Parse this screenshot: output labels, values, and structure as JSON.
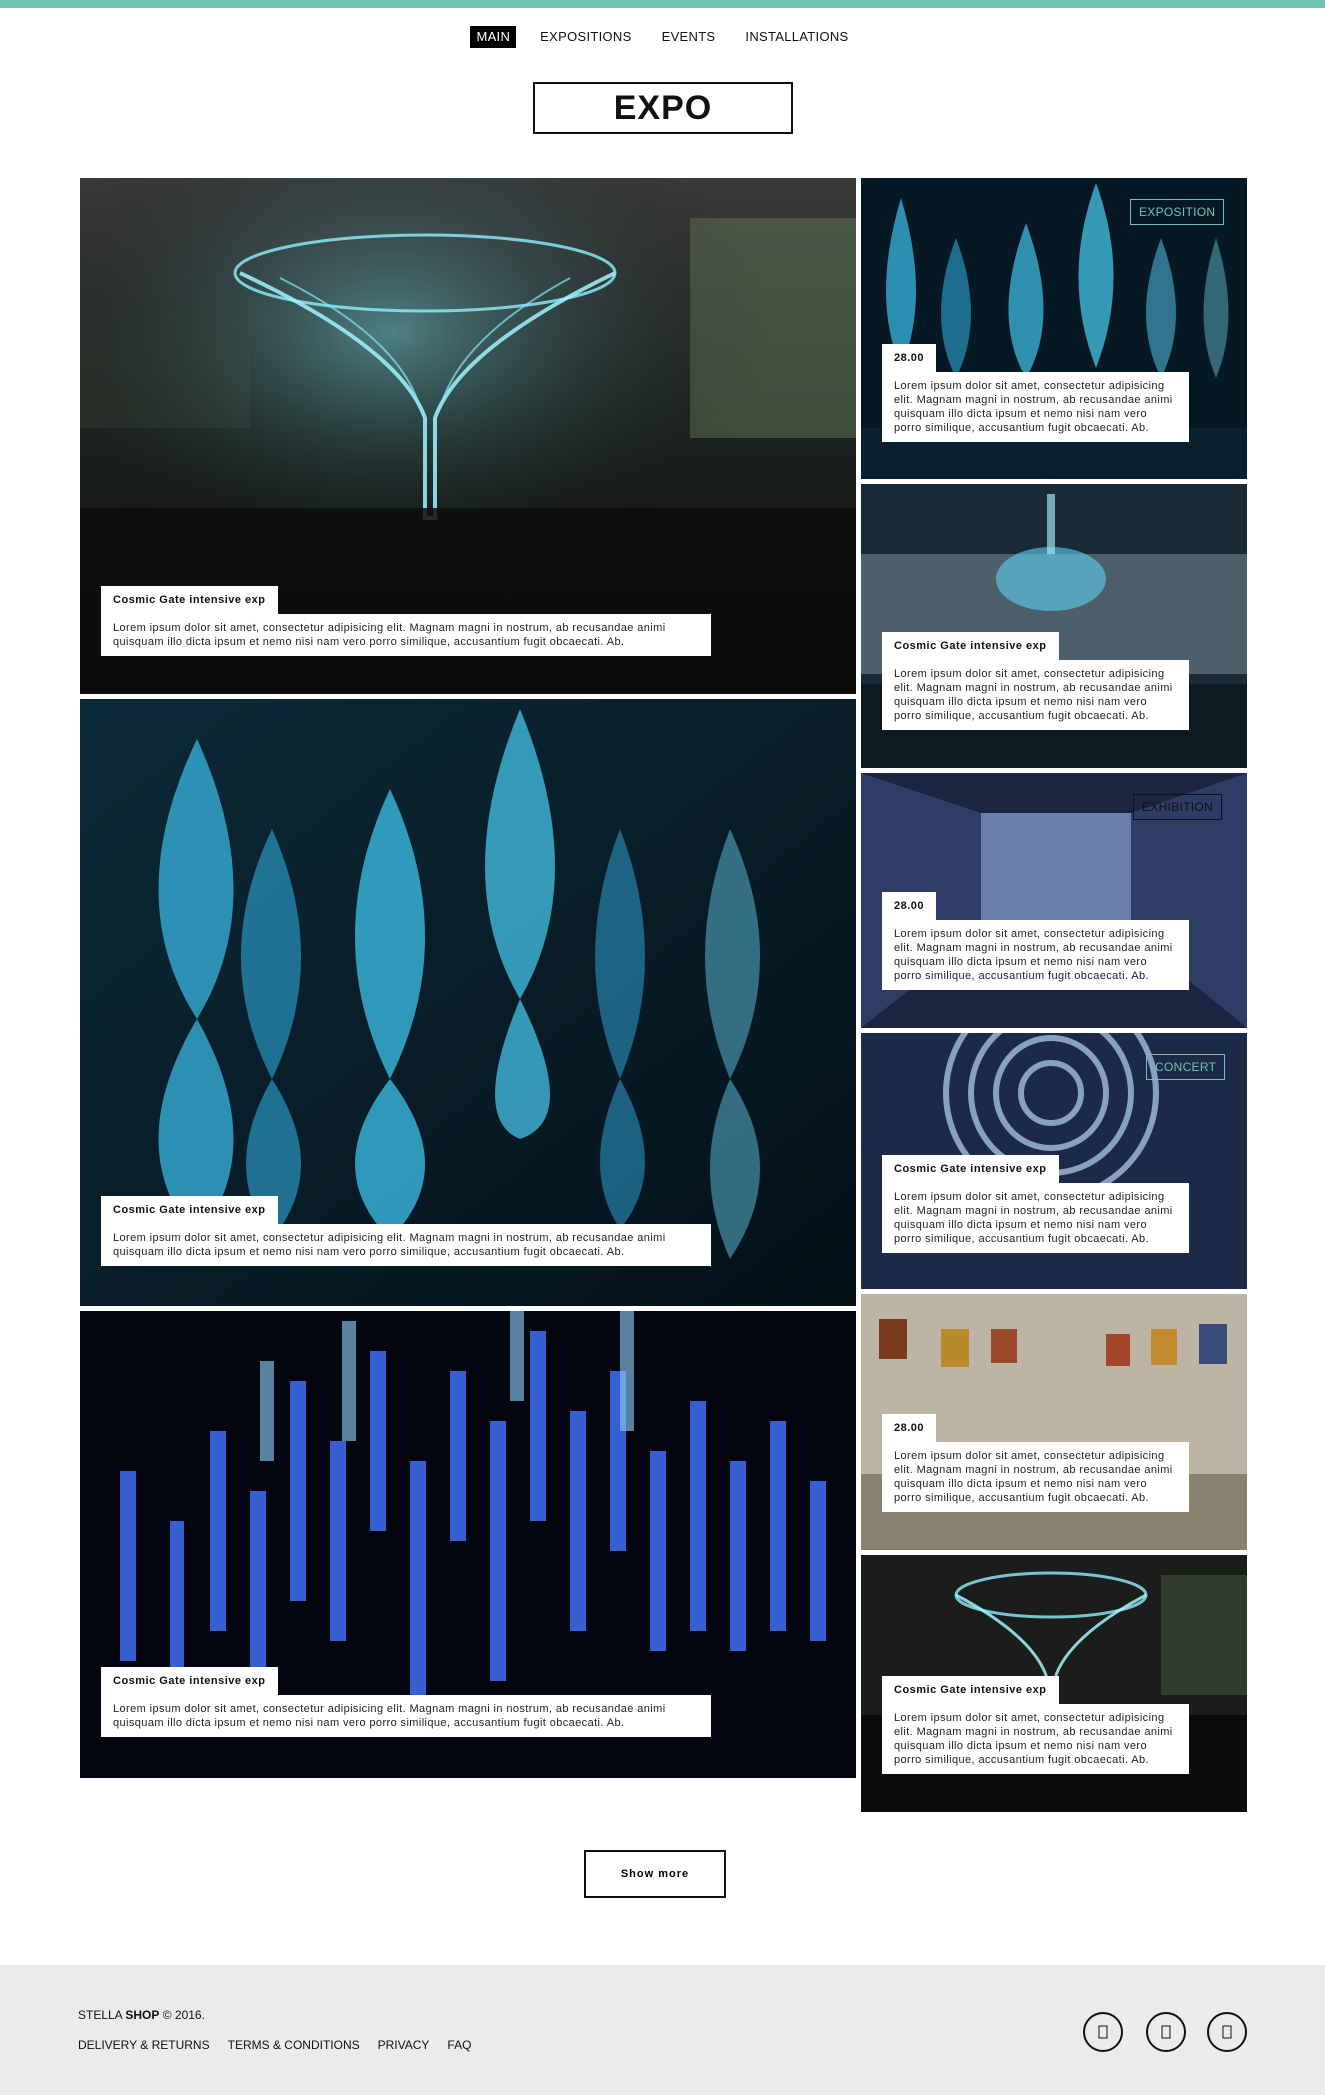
{
  "nav": {
    "items": [
      {
        "label": "MAIN",
        "active": true
      },
      {
        "label": "EXPOSITIONS"
      },
      {
        "label": "EVENTS"
      },
      {
        "label": "INSTALLATIONS"
      }
    ]
  },
  "logo": "EXPO",
  "tiles": {
    "big1": {
      "title": "Cosmic Gate intensive exp",
      "body": "Lorem ipsum dolor sit amet, consectetur adipisicing elit. Magnam magni in nostrum, ab recusandae animi quisquam illo dicta ipsum et nemo nisi nam vero porro similique, accusantium fugit obcaecati. Ab."
    },
    "big2": {
      "title": "Cosmic Gate intensive exp",
      "body": "Lorem ipsum dolor sit amet, consectetur adipisicing elit. Magnam magni in nostrum, ab recusandae animi quisquam illo dicta ipsum et nemo nisi nam vero porro similique, accusantium fugit obcaecati. Ab."
    },
    "big3": {
      "title": "Cosmic Gate intensive exp",
      "body": "Lorem ipsum dolor sit amet, consectetur adipisicing elit. Magnam magni in nostrum, ab recusandae animi quisquam illo dicta ipsum et nemo nisi nam vero porro similique, accusantium fugit obcaecati. Ab."
    },
    "small1": {
      "tag": "EXPOSITION",
      "title": "28.00",
      "body": "Lorem ipsum dolor sit amet, consectetur adipisicing elit. Magnam magni in nostrum, ab recusandae animi quisquam illo dicta ipsum et nemo nisi nam vero porro similique, accusantium fugit obcaecati. Ab."
    },
    "small2": {
      "title": "Cosmic Gate intensive exp",
      "body": "Lorem ipsum dolor sit amet, consectetur adipisicing elit. Magnam magni in nostrum, ab recusandae animi quisquam illo dicta ipsum et nemo nisi nam vero porro similique, accusantium fugit obcaecati. Ab."
    },
    "small3": {
      "tag": "EXHIBITION",
      "title": "28.00",
      "body": "Lorem ipsum dolor sit amet, consectetur adipisicing elit. Magnam magni in nostrum, ab recusandae animi quisquam illo dicta ipsum et nemo nisi nam vero porro similique, accusantium fugit obcaecati. Ab."
    },
    "small4": {
      "tag": "CONCERT",
      "title": "Cosmic Gate intensive exp",
      "body": "Lorem ipsum dolor sit amet, consectetur adipisicing elit. Magnam magni in nostrum, ab recusandae animi quisquam illo dicta ipsum et nemo nisi nam vero porro similique, accusantium fugit obcaecati. Ab."
    },
    "small5": {
      "title": "28.00",
      "body": "Lorem ipsum dolor sit amet, consectetur adipisicing elit. Magnam magni in nostrum, ab recusandae animi quisquam illo dicta ipsum et nemo nisi nam vero porro similique, accusantium fugit obcaecati. Ab."
    },
    "small6": {
      "title": "Cosmic Gate intensive exp",
      "body": "Lorem ipsum dolor sit amet, consectetur adipisicing elit. Magnam magni in nostrum, ab recusandae animi quisquam illo dicta ipsum et nemo nisi nam vero porro similique, accusantium fugit obcaecati. Ab."
    }
  },
  "show_more": "Show more",
  "footer": {
    "brand_a": "STELLA",
    "brand_b": "SHOP",
    "copyright": "© 2016.",
    "links": [
      "DELIVERY & RETURNS",
      "TERMS & CONDITIONS",
      "PRIVACY",
      "FAQ"
    ],
    "social": [
      "facebook-icon",
      "twitter-icon",
      "instagram-icon"
    ]
  },
  "colors": {
    "accent": "#6cc5b0",
    "tag_exposition": "#6cc5b0",
    "tag_exhibition": "#111111",
    "tag_concert": "#6cc5b0"
  }
}
